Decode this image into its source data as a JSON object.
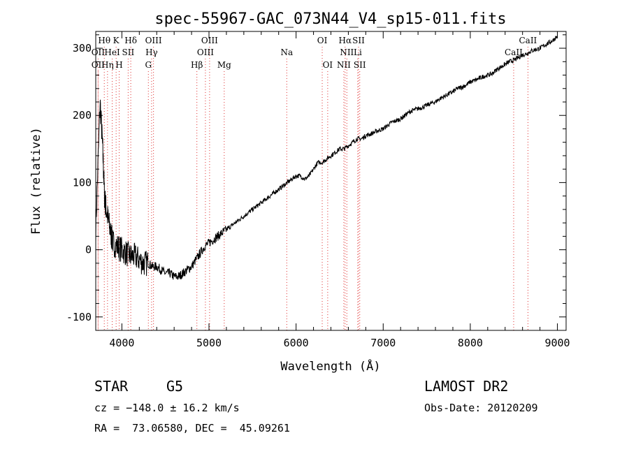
{
  "chart_data": {
    "type": "line",
    "title": "spec-55967-GAC_073N44_V4_sp15-011.fits",
    "xlabel": "Wavelength (Å)",
    "ylabel": "Flux (relative)",
    "xlim": [
      3700,
      9100
    ],
    "ylim": [
      -120,
      325
    ],
    "xticks": [
      4000,
      5000,
      6000,
      7000,
      8000,
      9000
    ],
    "yticks": [
      -100,
      0,
      100,
      200,
      300
    ],
    "grid": false,
    "legend": "none",
    "series": [
      {
        "x": [
          3700,
          3750,
          3780,
          3800,
          3820,
          3850,
          3880,
          3900,
          3950,
          4000,
          4050,
          4100,
          4150,
          4200,
          4250,
          4300,
          4350,
          4400,
          4450,
          4500,
          4550,
          4600,
          4650,
          4700,
          4750,
          4800,
          4850,
          4900,
          4950,
          5000,
          5050,
          5100,
          5150,
          5200,
          5250,
          5300,
          5350,
          5400,
          5450,
          5500,
          5550,
          5600,
          5650,
          5700,
          5750,
          5800,
          5850,
          5900,
          5950,
          6000,
          6050,
          6100,
          6150,
          6200,
          6250,
          6300,
          6350,
          6400,
          6450,
          6500,
          6550,
          6600,
          6650,
          6700,
          6750,
          6800,
          6850,
          6900,
          6950,
          7000,
          7050,
          7100,
          7150,
          7200,
          7250,
          7300,
          7350,
          7400,
          7450,
          7500,
          7550,
          7600,
          7650,
          7700,
          7750,
          7800,
          7850,
          7900,
          7950,
          8000,
          8050,
          8100,
          8150,
          8200,
          8250,
          8300,
          8350,
          8400,
          8450,
          8500,
          8550,
          8600,
          8650,
          8700,
          8750,
          8800,
          8850,
          8900,
          8950,
          9000
        ],
        "y": [
          30,
          220,
          150,
          80,
          60,
          40,
          20,
          10,
          5,
          0,
          -5,
          -10,
          -10,
          -15,
          -20,
          -20,
          -25,
          -25,
          -30,
          -35,
          -35,
          -40,
          -40,
          -35,
          -30,
          -25,
          -15,
          -5,
          5,
          10,
          15,
          20,
          25,
          30,
          35,
          40,
          45,
          50,
          55,
          60,
          65,
          70,
          75,
          80,
          85,
          90,
          95,
          100,
          105,
          110,
          110,
          105,
          110,
          120,
          130,
          130,
          135,
          140,
          145,
          150,
          150,
          155,
          160,
          165,
          165,
          170,
          172,
          175,
          178,
          180,
          185,
          190,
          192,
          195,
          200,
          205,
          208,
          210,
          212,
          215,
          218,
          220,
          225,
          228,
          232,
          235,
          240,
          242,
          245,
          250,
          252,
          255,
          258,
          260,
          262,
          268,
          272,
          276,
          280,
          282,
          286,
          290,
          292,
          296,
          298,
          300,
          304,
          308,
          312,
          318
        ]
      }
    ],
    "line_markers": [
      {
        "label": "Hθ",
        "x": 3798,
        "row": 1
      },
      {
        "label": "K",
        "x": 3934,
        "row": 1
      },
      {
        "label": "Hδ",
        "x": 4102,
        "row": 1
      },
      {
        "label": "OIII",
        "x": 4363,
        "row": 1
      },
      {
        "label": "OIII",
        "x": 5007,
        "row": 1
      },
      {
        "label": "OI",
        "x": 6300,
        "row": 1
      },
      {
        "label": "Hα",
        "x": 6563,
        "row": 1
      },
      {
        "label": "SII",
        "x": 6717,
        "row": 1
      },
      {
        "label": "CaII",
        "x": 8662,
        "row": 1
      },
      {
        "label": "OII",
        "x": 3727,
        "row": 2
      },
      {
        "label": "HeI",
        "x": 3889,
        "row": 2
      },
      {
        "label": "SII",
        "x": 4072,
        "row": 2
      },
      {
        "label": "Hγ",
        "x": 4341,
        "row": 2
      },
      {
        "label": "OIII",
        "x": 4959,
        "row": 2
      },
      {
        "label": "Na",
        "x": 5893,
        "row": 2
      },
      {
        "label": "NII",
        "x": 6583,
        "row": 2
      },
      {
        "label": "Li",
        "x": 6708,
        "row": 2
      },
      {
        "label": "CaII",
        "x": 8498,
        "row": 2
      },
      {
        "label": "OII",
        "x": 3727,
        "row": 3
      },
      {
        "label": "Hη",
        "x": 3835,
        "row": 3
      },
      {
        "label": "H",
        "x": 3969,
        "row": 3
      },
      {
        "label": "G",
        "x": 4304,
        "row": 3
      },
      {
        "label": "Hβ",
        "x": 4861,
        "row": 3
      },
      {
        "label": "Mg",
        "x": 5175,
        "row": 3
      },
      {
        "label": "OI",
        "x": 6363,
        "row": 3
      },
      {
        "label": "NII",
        "x": 6548,
        "row": 3
      },
      {
        "label": "SII",
        "x": 6731,
        "row": 3
      }
    ],
    "marker_line_color": "#e03030"
  },
  "info": {
    "class": "STAR",
    "subclass": "G5",
    "survey": "LAMOST DR2",
    "cz": "cz = −148.0 ± 16.2 km/s",
    "obs_date": "Obs-Date: 20120209",
    "coords": "RA =  73.06580, DEC =  45.09261"
  }
}
